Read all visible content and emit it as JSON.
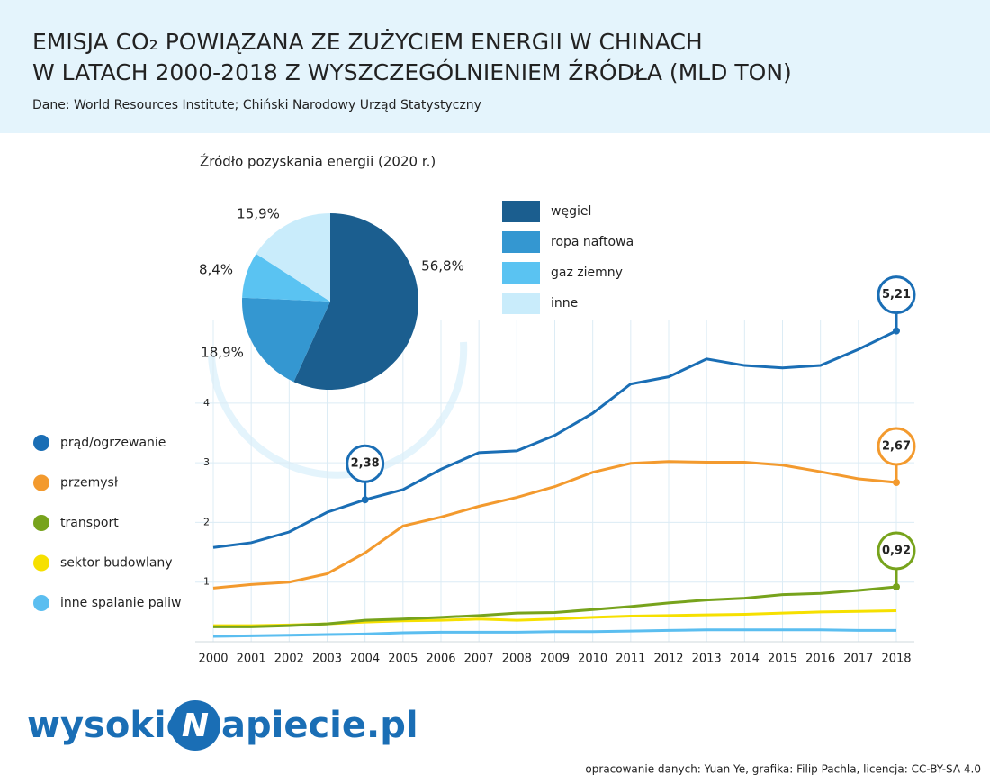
{
  "header": {
    "title": [
      "EMISJA CO₂ POWIĄZANA ZE ZUŻYCIEM ENERGII W CHINACH",
      "W LATACH 2000-2018 Z WYSZCZEGÓLNIENIEM ŹRÓDŁA (MLD TON)"
    ],
    "source": "Dane: World Resources Institute; Chiński Narodowy Urząd Statystyczny"
  },
  "chart_data": [
    {
      "type": "line",
      "x": [
        2000,
        2001,
        2002,
        2003,
        2004,
        2005,
        2006,
        2007,
        2008,
        2009,
        2010,
        2011,
        2012,
        2013,
        2014,
        2015,
        2016,
        2017,
        2018
      ],
      "xlim": [
        2000,
        2018
      ],
      "xticks": [
        2000,
        2001,
        2002,
        2003,
        2004,
        2005,
        2006,
        2007,
        2008,
        2009,
        2010,
        2011,
        2012,
        2013,
        2014,
        2015,
        2016,
        2017,
        2018
      ],
      "ylim": [
        0,
        5.4
      ],
      "yticks": [
        1,
        2,
        3,
        4
      ],
      "grid": true,
      "series": [
        {
          "name": "prąd/ogrzewanie",
          "color": "#1a6eb5",
          "values": [
            1.58,
            1.66,
            1.84,
            2.17,
            2.38,
            2.55,
            2.89,
            3.17,
            3.2,
            3.46,
            3.83,
            4.32,
            4.44,
            4.74,
            4.63,
            4.59,
            4.63,
            4.9,
            5.21
          ],
          "value_labels": [
            null,
            null,
            null,
            null,
            "2,38",
            null,
            null,
            null,
            null,
            null,
            null,
            null,
            null,
            null,
            null,
            null,
            null,
            null,
            "5,21"
          ]
        },
        {
          "name": "przemysł",
          "color": "#f39a2e",
          "values": [
            0.9,
            0.96,
            1.0,
            1.14,
            1.49,
            1.94,
            2.09,
            2.27,
            2.42,
            2.6,
            2.84,
            2.99,
            3.02,
            3.01,
            3.01,
            2.96,
            2.85,
            2.73,
            2.67
          ],
          "value_labels": [
            null,
            null,
            null,
            null,
            null,
            null,
            null,
            null,
            null,
            null,
            null,
            null,
            null,
            null,
            null,
            null,
            null,
            null,
            "2,67"
          ]
        },
        {
          "name": "transport",
          "color": "#77a31c",
          "values": [
            0.25,
            0.25,
            0.27,
            0.3,
            0.36,
            0.38,
            0.41,
            0.44,
            0.48,
            0.49,
            0.54,
            0.59,
            0.65,
            0.7,
            0.73,
            0.79,
            0.81,
            0.86,
            0.92
          ],
          "value_labels": [
            null,
            null,
            null,
            null,
            null,
            null,
            null,
            null,
            null,
            null,
            null,
            null,
            null,
            null,
            null,
            null,
            null,
            null,
            "0,92"
          ]
        },
        {
          "name": "sektor budowlany",
          "color": "#f6e000",
          "values": [
            0.27,
            0.27,
            0.28,
            0.3,
            0.33,
            0.35,
            0.36,
            0.38,
            0.36,
            0.38,
            0.41,
            0.43,
            0.44,
            0.45,
            0.46,
            0.48,
            0.5,
            0.51,
            0.52
          ]
        },
        {
          "name": "inne spalanie paliw",
          "color": "#5bbef0",
          "values": [
            0.09,
            0.1,
            0.11,
            0.12,
            0.13,
            0.15,
            0.16,
            0.16,
            0.16,
            0.17,
            0.17,
            0.18,
            0.19,
            0.2,
            0.2,
            0.2,
            0.2,
            0.19,
            0.19
          ]
        }
      ]
    },
    {
      "type": "pie",
      "title": "Źródło pozyskania energii (2020 r.)",
      "categories": [
        "węgiel",
        "ropa naftowa",
        "gaz ziemny",
        "inne"
      ],
      "values": [
        56.8,
        18.9,
        8.4,
        15.9
      ],
      "value_labels": [
        "56,8%",
        "18,9%",
        "8,4%",
        "15,9%"
      ],
      "colors": [
        "#1b5e8f",
        "#3497d1",
        "#5ac3f2",
        "#c9ecfb"
      ]
    }
  ],
  "footer": {
    "logo": {
      "left": "wysokie",
      "mark": "N",
      "right": "apiecie.pl"
    },
    "credit": "opracowanie danych: Yuan Ye, grafika: Filip Pachla, licencja: CC-BY-SA 4.0"
  }
}
